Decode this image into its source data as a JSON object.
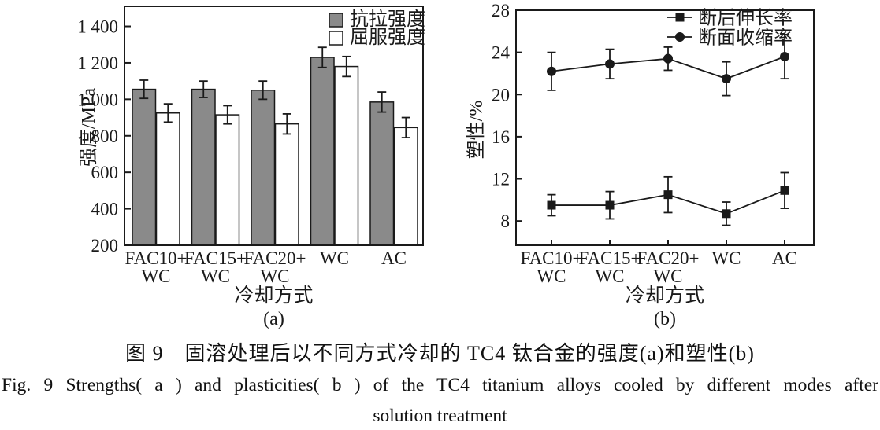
{
  "colors": {
    "ink": "#1a1a1a",
    "bar_fill_gray": "#8a8a8a",
    "bar_fill_white": "#ffffff",
    "background": "#ffffff"
  },
  "caption": {
    "zh": "图 9　固溶处理后以不同方式冷却的 TC4 钛合金的强度(a)和塑性(b)",
    "en_line1": "Fig. 9   Strengths( a )  and plasticities( b )  of the TC4 titanium alloys cooled by different modes after",
    "en_line2": "solution treatment"
  },
  "chart_data": [
    {
      "id": "a",
      "type": "bar",
      "subplot_label": "(a)",
      "title": "",
      "xlabel": "冷却方式",
      "ylabel": "强度/MPa",
      "categories": [
        "FAC10+WC",
        "FAC15+WC",
        "FAC20+WC",
        "WC",
        "AC"
      ],
      "category_lines": [
        [
          "FAC10+",
          "WC"
        ],
        [
          "FAC15+",
          "WC"
        ],
        [
          "FAC20+",
          "WC"
        ],
        [
          "WC"
        ],
        [
          "AC"
        ]
      ],
      "ylim": [
        200,
        1510
      ],
      "yticks": [
        200,
        400,
        600,
        800,
        1000,
        1200,
        1400
      ],
      "ytick_labels": [
        "200",
        "400",
        "600",
        "800",
        "1 000",
        "1 200",
        "1 400"
      ],
      "grid": false,
      "legend_position": "top-right-inside",
      "series": [
        {
          "name": "抗拉强度",
          "style": "bar-gray",
          "values": [
            1055,
            1055,
            1050,
            1230,
            985
          ],
          "errors": [
            50,
            45,
            50,
            55,
            55
          ]
        },
        {
          "name": "屈服强度",
          "style": "bar-white",
          "values": [
            925,
            915,
            865,
            1180,
            845
          ],
          "errors": [
            50,
            50,
            55,
            55,
            55
          ]
        }
      ]
    },
    {
      "id": "b",
      "type": "line",
      "subplot_label": "(b)",
      "title": "",
      "xlabel": "冷却方式",
      "ylabel": "塑性/%",
      "categories": [
        "FAC10+WC",
        "FAC15+WC",
        "FAC20+WC",
        "WC",
        "AC"
      ],
      "category_lines": [
        [
          "FAC10+",
          "WC"
        ],
        [
          "FAC15+",
          "WC"
        ],
        [
          "FAC20+",
          "WC"
        ],
        [
          "WC"
        ],
        [
          "AC"
        ]
      ],
      "ylim": [
        5.7,
        28
      ],
      "yticks": [
        8,
        12,
        16,
        20,
        24,
        28
      ],
      "ytick_labels": [
        "8",
        "12",
        "16",
        "20",
        "24",
        "28"
      ],
      "grid": false,
      "legend_position": "top-right-inside",
      "series": [
        {
          "name": "断后伸长率",
          "style": "square",
          "values": [
            9.5,
            9.5,
            10.5,
            8.7,
            10.9
          ],
          "errors": [
            1.0,
            1.3,
            1.7,
            1.1,
            1.7
          ]
        },
        {
          "name": "断面收缩率",
          "style": "circle",
          "values": [
            22.2,
            22.9,
            23.4,
            21.5,
            23.6
          ],
          "errors": [
            1.8,
            1.4,
            1.1,
            1.6,
            2.1
          ]
        }
      ]
    }
  ]
}
